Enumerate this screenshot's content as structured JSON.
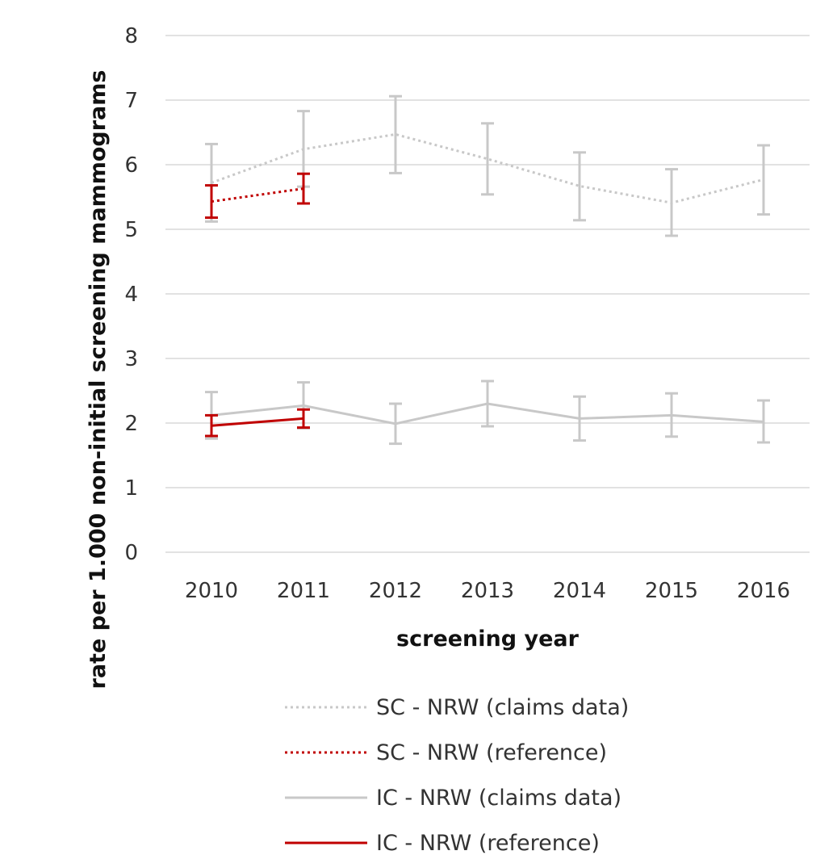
{
  "chart_data": {
    "type": "line",
    "title": "",
    "xlabel": "screening year",
    "ylabel": "rate per 1.000 non-initial screening mammograms",
    "ylim": [
      0,
      8
    ],
    "yticks": [
      "0",
      "1",
      "2",
      "3",
      "4",
      "5",
      "6",
      "7",
      "8"
    ],
    "categories": [
      "2010",
      "2011",
      "2012",
      "2013",
      "2014",
      "2015",
      "2016"
    ],
    "grid": true,
    "legend_position": "bottom",
    "series": [
      {
        "name": "SC - NRW (claims data)",
        "style": "dotted",
        "color": "#c8c8c8",
        "values": [
          5.72,
          6.24,
          6.47,
          6.09,
          5.67,
          5.41,
          5.77
        ],
        "err_low": [
          5.12,
          5.66,
          5.87,
          5.54,
          5.14,
          4.9,
          5.23
        ],
        "err_high": [
          6.32,
          6.83,
          7.06,
          6.64,
          6.19,
          5.93,
          6.3
        ]
      },
      {
        "name": "SC - NRW (reference)",
        "style": "dotted",
        "color": "#c00000",
        "values": [
          5.43,
          5.63,
          null,
          null,
          null,
          null,
          null
        ],
        "err_low": [
          5.18,
          5.4,
          null,
          null,
          null,
          null,
          null
        ],
        "err_high": [
          5.68,
          5.86,
          null,
          null,
          null,
          null,
          null
        ]
      },
      {
        "name": "IC - NRW (claims data)",
        "style": "solid",
        "color": "#c8c8c8",
        "values": [
          2.12,
          2.27,
          1.99,
          2.3,
          2.07,
          2.12,
          2.02
        ],
        "err_low": [
          1.76,
          1.92,
          1.68,
          1.95,
          1.73,
          1.79,
          1.7
        ],
        "err_high": [
          2.48,
          2.63,
          2.3,
          2.65,
          2.41,
          2.46,
          2.35
        ]
      },
      {
        "name": "IC - NRW (reference)",
        "style": "solid",
        "color": "#c00000",
        "values": [
          1.96,
          2.07,
          null,
          null,
          null,
          null,
          null
        ],
        "err_low": [
          1.8,
          1.93,
          null,
          null,
          null,
          null,
          null
        ],
        "err_high": [
          2.12,
          2.21,
          null,
          null,
          null,
          null,
          null
        ]
      }
    ]
  }
}
